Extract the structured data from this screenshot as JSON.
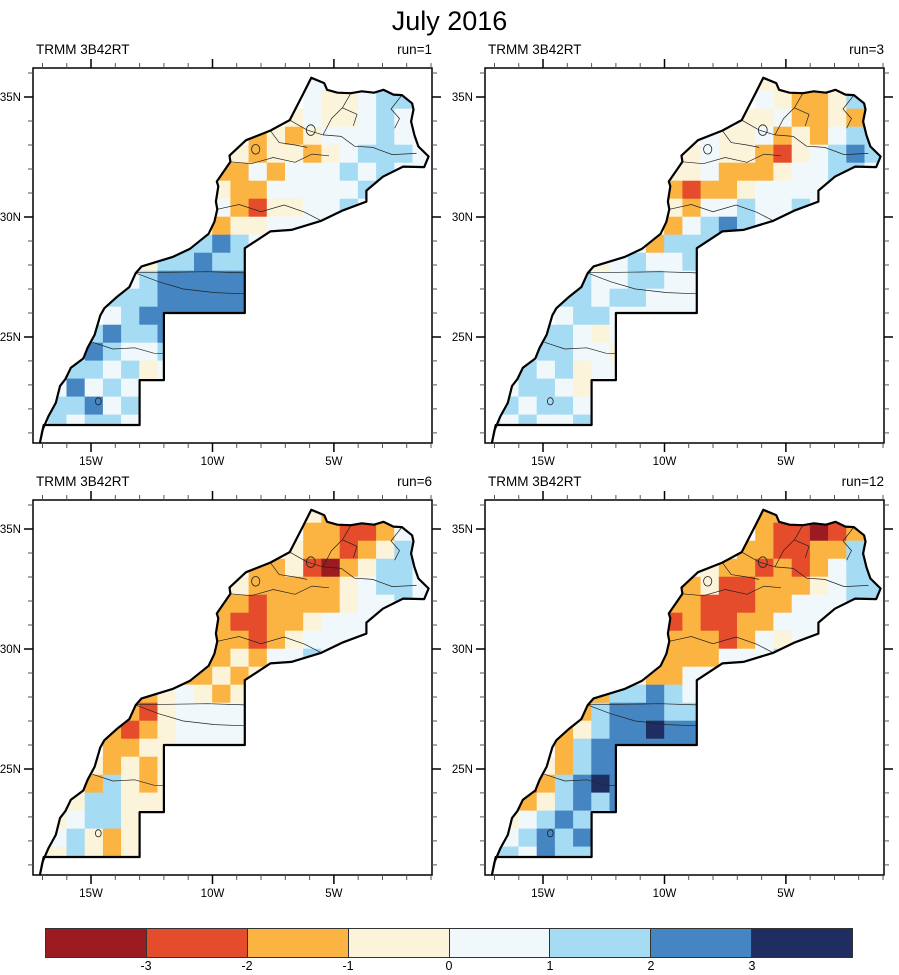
{
  "title": "July 2016",
  "chart_data": {
    "type": "heatmap",
    "subtype": "gridded precipitation anomaly maps (2x2 panel figure)",
    "region": "Morocco and Western Sahara",
    "title": "July 2016",
    "panels": [
      {
        "dataset": "TRMM 3B42RT",
        "run": "run=1",
        "grid": [
          "...............wwcwbb.",
          "...............wccwbbb",
          "..............cwccwbwb",
          "............OcOcwwwbww",
          "...........cOccOcwbbbw",
          "..........OOwOwwwbwbww",
          "..........cOOwwwwwb...",
          "..........wOrccwwbw...",
          ".........cOccwwww.....",
          "........bbBbww........",
          "......cbbBbb..........",
          ".....wbBBBBB..........",
          "....bbbBBBBB..........",
          "....wbBBBBBB..........",
          "...bBbbB..............",
          "..wBbwwb..............",
          "..bbwbcw..............",
          ".wBwbwc...............",
          ".bbBwbw...............",
          "wbwbbww..............."
        ]
      },
      {
        "dataset": "TRMM 3B42RT",
        "run": "run=3",
        "grid": [
          "...............ccOOcw.",
          "...............wcOOcbw",
          "..............ccwOOcOb",
          "............wccwOcOwbb",
          "...........cwccOrcwbBb",
          "..........ccwOOOcwwbbw",
          "..........OrOOcwwww...",
          "..........cOwwbwwbw...",
          ".........wOwbBbww.....",
          "........wObbbw........",
          "......cwbwwb..........",
          ".....bwwbbww..........",
          "....bbwbbwww..........",
          "....wbbwwwww..........",
          "...bbwcw..............",
          "..wbbwwc..............",
          "..bwbcww..............",
          ".wbbwcw...............",
          ".bwbbwc...............",
          "bwbwwbw..............."
        ]
      },
      {
        "dataset": "TRMM 3B42RT",
        "run": "run=6",
        "grid": [
          "...............cOOrOc.",
          "...............OOrrOwc",
          "..............cOOrOcbb",
          "............OOcrROcbbw",
          "...........cOOOOOcwbbw",
          "..........OOrOOOOcwwbw",
          "..........OrrOOcwww...",
          "..........OOrOcwwww...",
          ".........OOcOwwbw.....",
          "........OOcOcw........",
          "......OcwcOc..........",
          ".....Orcwwww..........",
          "....OrOcwwww..........",
          "....OOccwwww..........",
          "...cOcOc..............",
          "..cObcOc..............",
          "..cbbccc..............",
          ".cwbbcc...............",
          ".wbcOcc...............",
          "ccbcOcw..............."
        ]
      },
      {
        "dataset": "TRMM 3B42RT",
        "run": "run=12",
        "grid": [
          "...............OOOrOO.",
          "...............OrrRrOc",
          "..............OOrrOObB",
          "............cOOrOrOwbb",
          "...........OcrrOOOcwbb",
          "..........OOrrrOOwwwbb",
          "..........rOrrOOwww...",
          "..........OOOrOwcww...",
          ".........OOOOwwwb.....",
          "........cOOwww........",
          "......ObbBbw..........",
          ".....ObBBBbb..........",
          "....OcbBBNBB..........",
          "....ObBBBBBB..........",
          "...cObBB..............",
          "..rObBNB..............",
          "..OcbBbB..............",
          ".cwbBbb...............",
          ".wbBbBb...............",
          "bbwBbbw..............."
        ]
      }
    ],
    "grid_spec": {
      "lon_min": -17.5,
      "lon_step": 0.75,
      "cols": 22,
      "lat_max": 36.0,
      "lat_step": 0.75,
      "rows": 20
    },
    "legend_key": {
      "R": "< -3",
      "r": "-3 to -2",
      "O": "-2 to -1",
      "c": "-1 to 0",
      "w": "0 to 1",
      "b": "1 to 2",
      "B": "2 to 3",
      "N": "> 3"
    },
    "axes": {
      "x_ticks": [
        {
          "lon": -15,
          "label": "15W"
        },
        {
          "lon": -10,
          "label": "10W"
        },
        {
          "lon": -5,
          "label": "5W"
        }
      ],
      "y_ticks": [
        {
          "lat": 35,
          "label": "35N"
        },
        {
          "lat": 30,
          "label": "30N"
        },
        {
          "lat": 25,
          "label": "25N"
        }
      ],
      "lon_range": [
        -17.39,
        -0.96
      ],
      "lat_range": [
        20.58,
        36.21
      ],
      "minor_tick_interval_deg": 1
    },
    "colorbar": {
      "tick_labels": [
        "-3",
        "-2",
        "-1",
        "0",
        "1",
        "2",
        "3"
      ],
      "colors": [
        "#9B1B20",
        "#E54C2C",
        "#FBB441",
        "#FCF4DA",
        "#F0F8FB",
        "#A5DBF3",
        "#4586C2",
        "#1F2E62"
      ],
      "classes": [
        "< -3",
        "-3 to -2",
        "-2 to -1",
        "-1 to 0",
        "0 to 1",
        "1 to 2",
        "2 to 3",
        "> 3"
      ]
    },
    "map_outline": [
      [
        -5.93,
        35.8
      ],
      [
        -5.4,
        35.58
      ],
      [
        -5.28,
        35.3
      ],
      [
        -4.85,
        35.18
      ],
      [
        -4.3,
        35.16
      ],
      [
        -3.85,
        35.24
      ],
      [
        -3.35,
        35.18
      ],
      [
        -2.96,
        35.3
      ],
      [
        -2.55,
        35.1
      ],
      [
        -2.2,
        35.08
      ],
      [
        -1.78,
        34.74
      ],
      [
        -1.72,
        34.48
      ],
      [
        -1.82,
        33.98
      ],
      [
        -1.68,
        33.4
      ],
      [
        -1.52,
        32.94
      ],
      [
        -1.1,
        32.52
      ],
      [
        -1.28,
        32.08
      ],
      [
        -2.15,
        32.1
      ],
      [
        -2.98,
        31.68
      ],
      [
        -3.66,
        31.1
      ],
      [
        -3.66,
        30.64
      ],
      [
        -4.62,
        30.28
      ],
      [
        -5.52,
        29.84
      ],
      [
        -6.75,
        29.46
      ],
      [
        -7.62,
        29.4
      ],
      [
        -8.67,
        28.7
      ],
      [
        -8.67,
        26.0
      ],
      [
        -12.0,
        26.0
      ],
      [
        -12.0,
        23.2
      ],
      [
        -13.0,
        23.2
      ],
      [
        -13.0,
        21.33
      ],
      [
        -16.95,
        21.33
      ],
      [
        -17.1,
        20.6
      ],
      [
        -17.0,
        21.12
      ],
      [
        -16.75,
        21.7
      ],
      [
        -16.45,
        22.25
      ],
      [
        -16.28,
        22.95
      ],
      [
        -16.05,
        23.25
      ],
      [
        -15.83,
        23.72
      ],
      [
        -15.32,
        24.1
      ],
      [
        -15.14,
        24.55
      ],
      [
        -14.85,
        25.1
      ],
      [
        -14.62,
        25.9
      ],
      [
        -14.45,
        26.2
      ],
      [
        -13.92,
        26.68
      ],
      [
        -13.42,
        27.08
      ],
      [
        -13.16,
        27.66
      ],
      [
        -12.92,
        27.94
      ],
      [
        -11.62,
        28.34
      ],
      [
        -10.92,
        28.68
      ],
      [
        -10.16,
        29.3
      ],
      [
        -9.92,
        29.8
      ],
      [
        -9.8,
        30.32
      ],
      [
        -9.86,
        30.64
      ],
      [
        -9.76,
        31.28
      ],
      [
        -9.82,
        31.48
      ],
      [
        -9.26,
        32.3
      ],
      [
        -9.3,
        32.56
      ],
      [
        -8.62,
        33.2
      ],
      [
        -7.62,
        33.6
      ],
      [
        -6.82,
        34.04
      ],
      [
        -6.28,
        35.1
      ]
    ],
    "admin_lines": [
      [
        [
          -13.1,
          27.68
        ],
        [
          -11.5,
          27.7
        ],
        [
          -10.2,
          27.72
        ],
        [
          -8.67,
          27.67
        ]
      ],
      [
        [
          -14.95,
          24.78
        ],
        [
          -14.1,
          24.5
        ],
        [
          -13.2,
          24.55
        ],
        [
          -12.4,
          24.32
        ],
        [
          -12.0,
          24.3
        ]
      ],
      [
        [
          -6.82,
          34.04
        ],
        [
          -6.1,
          33.62
        ],
        [
          -5.45,
          33.42
        ],
        [
          -4.7,
          33.36
        ],
        [
          -4.15,
          32.95
        ],
        [
          -3.4,
          32.9
        ],
        [
          -2.6,
          32.6
        ],
        [
          -1.6,
          32.65
        ]
      ],
      [
        [
          -9.26,
          32.3
        ],
        [
          -8.4,
          32.22
        ],
        [
          -7.5,
          32.48
        ],
        [
          -6.6,
          32.28
        ],
        [
          -5.9,
          32.62
        ],
        [
          -5.2,
          32.55
        ]
      ],
      [
        [
          -9.8,
          30.32
        ],
        [
          -8.9,
          30.52
        ],
        [
          -8.0,
          30.22
        ],
        [
          -7.05,
          30.5
        ],
        [
          -6.2,
          30.2
        ],
        [
          -5.52,
          29.84
        ]
      ],
      [
        [
          -7.62,
          33.6
        ],
        [
          -7.25,
          33.1
        ],
        [
          -6.6,
          33.0
        ],
        [
          -6.1,
          32.9
        ]
      ],
      [
        [
          -2.2,
          35.08
        ],
        [
          -2.65,
          34.5
        ],
        [
          -2.3,
          34.1
        ],
        [
          -2.5,
          33.7
        ]
      ],
      [
        [
          -4.3,
          35.16
        ],
        [
          -4.65,
          34.55
        ],
        [
          -4.05,
          34.28
        ],
        [
          -4.2,
          33.8
        ]
      ],
      [
        [
          -13.16,
          27.66
        ],
        [
          -12.2,
          27.3
        ],
        [
          -11.2,
          27.0
        ],
        [
          -9.9,
          26.85
        ],
        [
          -8.67,
          26.8
        ]
      ],
      [
        [
          -5.45,
          33.42
        ],
        [
          -5.1,
          34.1
        ],
        [
          -4.65,
          34.55
        ]
      ]
    ],
    "map_features": [
      {
        "lon": -5.95,
        "lat": 33.62,
        "rx": 0.18,
        "ry": 0.22
      },
      {
        "lon": -8.22,
        "lat": 32.82,
        "rx": 0.17,
        "ry": 0.2
      },
      {
        "lon": -14.7,
        "lat": 22.32,
        "rx": 0.12,
        "ry": 0.15
      }
    ]
  }
}
